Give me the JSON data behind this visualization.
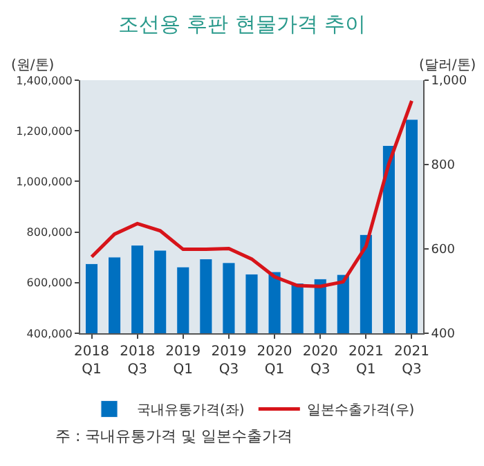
{
  "chart_data": {
    "type": "bar",
    "title": "조선용 후판 현물가격 추이",
    "ylabel": "(원/톤)",
    "y2label": "(달러/톤)",
    "categories": [
      "2018\nQ1",
      null,
      "2018\nQ3",
      null,
      "2019\nQ1",
      null,
      "2019\nQ3",
      null,
      "2020\nQ1",
      null,
      "2020\nQ3",
      null,
      "2021\nQ1",
      null,
      "2021\nQ3"
    ],
    "series": [
      {
        "name": "국내유통가격(좌)",
        "color": "#0070c0",
        "values": [
          675000,
          701000,
          748000,
          728000,
          662000,
          694000,
          679000,
          634000,
          643000,
          598000,
          615000,
          632000,
          790000,
          1142000,
          1245000
        ]
      },
      {
        "name": "일본수출가격(우)",
        "type": "line",
        "axis": "y2",
        "color": "#d7141a",
        "values": [
          581,
          635,
          660,
          643,
          599,
          599,
          601,
          576,
          534,
          513,
          511,
          522,
          606,
          802,
          951
        ]
      }
    ],
    "ylim": [
      400000,
      1400000
    ],
    "yticks": [
      {
        "value": 400000,
        "label": "400,000"
      },
      {
        "value": 600000,
        "label": "600,000"
      },
      {
        "value": 800000,
        "label": "800,000"
      },
      {
        "value": 1000000,
        "label": "1,000,000"
      },
      {
        "value": 1200000,
        "label": "1,200,000"
      },
      {
        "value": 1400000,
        "label": "1,400,000"
      }
    ],
    "y2lim": [
      400,
      1000
    ],
    "y2ticks": [
      400,
      600,
      800,
      {
        "value": 1000,
        "label": "1,000"
      }
    ],
    "grid": false,
    "legend": "bottom",
    "marker": "none",
    "annotations": [
      "주 : 국내유통가격 및 일본수출가격"
    ]
  }
}
